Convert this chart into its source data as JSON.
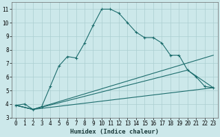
{
  "xlabel": "Humidex (Indice chaleur)",
  "background_color": "#cce8ea",
  "grid_color": "#aacdd0",
  "line_color": "#1a6b6b",
  "line1_x": [
    0,
    1,
    2,
    3,
    4,
    5,
    6,
    7,
    8,
    9,
    10,
    11,
    12,
    13,
    14,
    15,
    16,
    17,
    18,
    19,
    20,
    21,
    22,
    23
  ],
  "line1_y": [
    3.9,
    4.0,
    3.6,
    3.8,
    5.3,
    6.8,
    7.5,
    7.4,
    8.5,
    9.8,
    11.0,
    11.0,
    10.7,
    10.0,
    9.3,
    8.9,
    8.9,
    8.5,
    7.6,
    7.6,
    6.5,
    6.0,
    5.3,
    5.2
  ],
  "line2_x": [
    0,
    2,
    23
  ],
  "line2_y": [
    3.9,
    3.6,
    7.6
  ],
  "line3_x": [
    0,
    2,
    20,
    23
  ],
  "line3_y": [
    3.9,
    3.6,
    6.5,
    5.2
  ],
  "line4_x": [
    0,
    2,
    23
  ],
  "line4_y": [
    3.9,
    3.6,
    5.2
  ],
  "xlim": [
    -0.5,
    23.5
  ],
  "ylim": [
    3,
    11.5
  ],
  "yticks": [
    3,
    4,
    5,
    6,
    7,
    8,
    9,
    10,
    11
  ],
  "xticks": [
    0,
    1,
    2,
    3,
    4,
    5,
    6,
    7,
    8,
    9,
    10,
    11,
    12,
    13,
    14,
    15,
    16,
    17,
    18,
    19,
    20,
    21,
    22,
    23
  ],
  "tick_fontsize": 5.5,
  "xlabel_fontsize": 6.5
}
